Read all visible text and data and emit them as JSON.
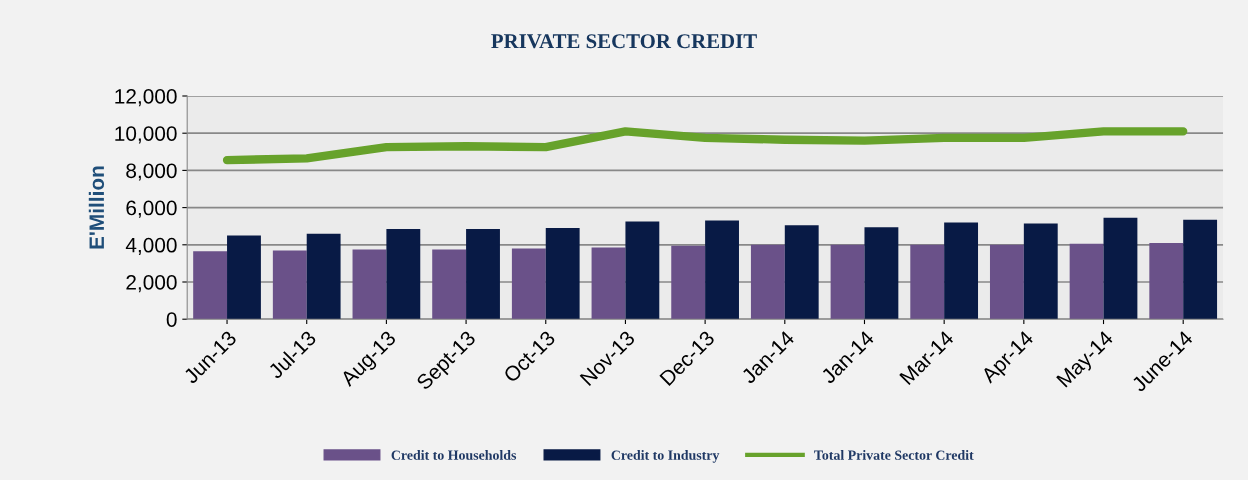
{
  "chart_data": {
    "type": "bar",
    "title": "PRIVATE SECTOR CREDIT",
    "ylabel": "E'Million",
    "categories": [
      "Jun-13",
      "Jul-13",
      "Aug-13",
      "Sept-13",
      "Oct-13",
      "Nov-13",
      "Dec-13",
      "Jan-14",
      "Jan-14",
      "Mar-14",
      "Apr-14",
      "May-14",
      "June-14"
    ],
    "series": [
      {
        "name": "Credit to Households",
        "color": "#6a5189",
        "values": [
          3650,
          3700,
          3750,
          3750,
          3800,
          3850,
          3950,
          4000,
          4000,
          4000,
          4000,
          4050,
          4100
        ]
      },
      {
        "name": "Credit to Industry",
        "color": "#081a45",
        "values": [
          4500,
          4600,
          4850,
          4850,
          4900,
          5250,
          5300,
          5050,
          4950,
          5200,
          5150,
          5450,
          5350
        ]
      },
      {
        "name": "Total Private Sector Credit",
        "color": "#67a22b",
        "type": "line",
        "values": [
          8550,
          8650,
          9250,
          9300,
          9250,
          10100,
          9750,
          9650,
          9600,
          9750,
          9750,
          10100,
          10100
        ]
      }
    ],
    "ylim": [
      0,
      12000
    ],
    "yticks": [
      {
        "value": 0,
        "label": "0"
      },
      {
        "value": 2000,
        "label": "2,000"
      },
      {
        "value": 4000,
        "label": "4,000"
      },
      {
        "value": 6000,
        "label": "6,000"
      },
      {
        "value": 8000,
        "label": "8,000"
      },
      {
        "value": 10000,
        "label": "10,000"
      },
      {
        "value": 12000,
        "label": "12,000"
      }
    ],
    "grid": "y",
    "legend": "bottom"
  }
}
